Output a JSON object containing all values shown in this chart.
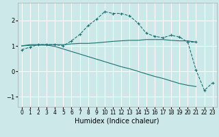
{
  "xlabel": "Humidex (Indice chaleur)",
  "background_color": "#cce8e8",
  "grid_color": "#ffffff",
  "line_color": "#1a7070",
  "xlim": [
    -0.5,
    23.5
  ],
  "ylim": [
    -1.4,
    2.7
  ],
  "yticks": [
    -1,
    0,
    1,
    2
  ],
  "xticks": [
    0,
    1,
    2,
    3,
    4,
    5,
    6,
    7,
    8,
    9,
    10,
    11,
    12,
    13,
    14,
    15,
    16,
    17,
    18,
    19,
    20,
    21,
    22,
    23
  ],
  "series1_x": [
    0,
    1,
    2,
    3,
    4,
    5,
    6,
    7,
    8,
    9,
    10,
    11,
    12,
    13,
    14,
    15,
    16,
    17,
    18,
    19,
    20,
    21
  ],
  "series1_y": [
    0.85,
    0.95,
    1.05,
    1.05,
    1.05,
    1.0,
    1.2,
    1.45,
    1.8,
    2.05,
    2.35,
    2.28,
    2.28,
    2.18,
    1.9,
    1.5,
    1.38,
    1.32,
    1.42,
    1.35,
    1.15,
    1.15
  ],
  "series2_x": [
    0,
    1,
    2,
    3,
    4,
    5,
    6,
    7,
    8,
    9,
    10,
    11,
    12,
    13,
    14,
    15,
    16,
    17,
    18,
    19,
    20,
    21
  ],
  "series2_y": [
    1.0,
    1.05,
    1.05,
    1.05,
    1.05,
    1.05,
    1.08,
    1.1,
    1.1,
    1.12,
    1.15,
    1.18,
    1.2,
    1.22,
    1.22,
    1.25,
    1.25,
    1.25,
    1.22,
    1.2,
    1.2,
    1.15
  ],
  "series3_x": [
    0,
    1,
    2,
    3,
    4,
    5,
    6,
    7,
    8,
    9,
    10,
    11,
    12,
    13,
    14,
    15,
    16,
    17,
    18,
    19,
    20,
    21
  ],
  "series3_y": [
    1.0,
    1.02,
    1.03,
    1.03,
    0.98,
    0.88,
    0.78,
    0.68,
    0.58,
    0.48,
    0.38,
    0.28,
    0.18,
    0.1,
    0.0,
    -0.1,
    -0.2,
    -0.28,
    -0.38,
    -0.48,
    -0.55,
    -0.6
  ],
  "series4_x": [
    20,
    21,
    22,
    23
  ],
  "series4_y": [
    1.15,
    0.05,
    -0.75,
    -0.45
  ]
}
